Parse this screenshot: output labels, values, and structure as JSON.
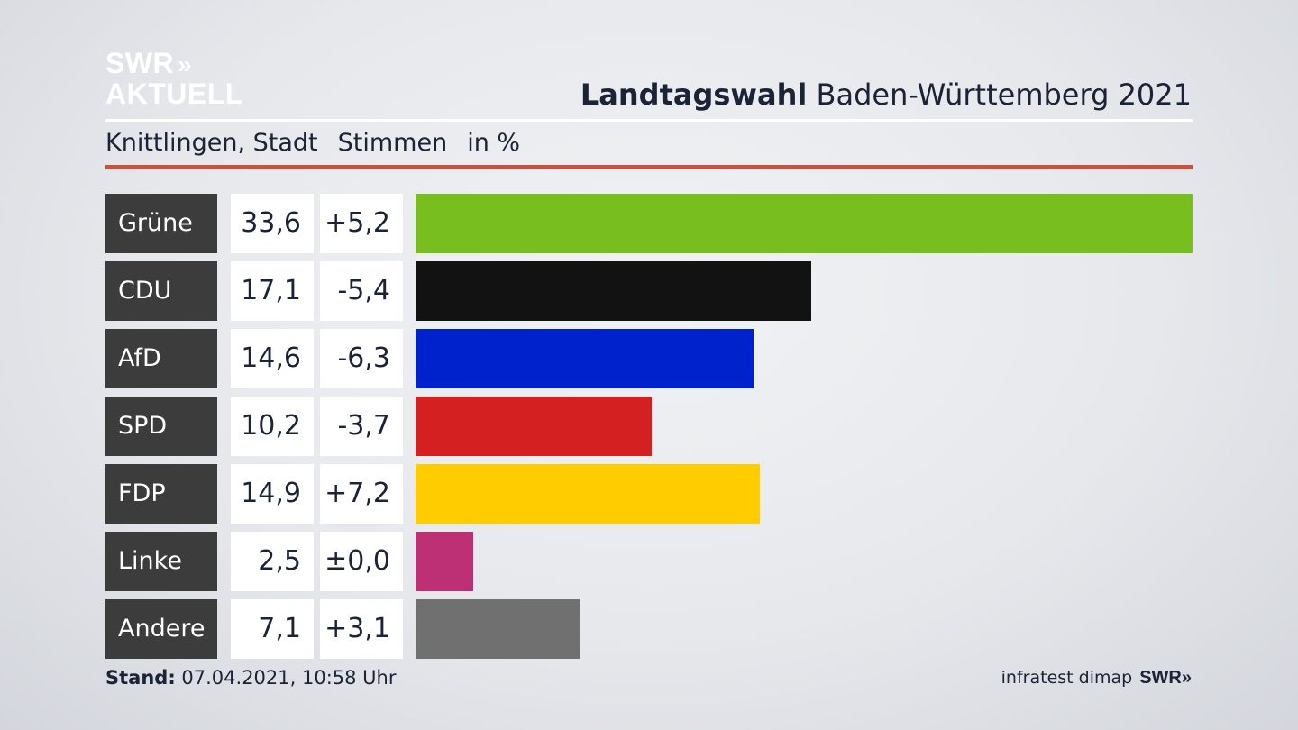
{
  "logo": {
    "line1": "SWR",
    "chevrons": "»",
    "line2": "AKTUELL"
  },
  "header": {
    "title_bold": "Landtagswahl",
    "title_rest": " Baden-Württemberg 2021"
  },
  "subheader": {
    "location": "Knittlingen, Stadt",
    "measure": "Stimmen",
    "unit": "in %"
  },
  "footer": {
    "stand_label": "Stand:",
    "stand_value": " 07.04.2021, 10:58 Uhr",
    "source": "infratest dimap",
    "brand": "SWR»"
  },
  "colors": {
    "accent_rule": "#cf4f3e",
    "label_bg": "#3c3c3c"
  },
  "chart_data": {
    "type": "bar",
    "orientation": "horizontal",
    "unit": "in %",
    "categories": [
      "Grüne",
      "CDU",
      "AfD",
      "SPD",
      "FDP",
      "Linke",
      "Andere"
    ],
    "values": [
      33.6,
      17.1,
      14.6,
      10.2,
      14.9,
      2.5,
      7.1
    ],
    "value_labels": [
      "33,6",
      "17,1",
      "14,6",
      "10,2",
      "14,9",
      "2,5",
      "7,1"
    ],
    "change_labels": [
      "+5,2",
      "-5,4",
      "-6,3",
      "-3,7",
      "+7,2",
      "±0,0",
      "+3,1"
    ],
    "colors": [
      "#78be1e",
      "#121212",
      "#0022cc",
      "#d42020",
      "#ffcc00",
      "#be3075",
      "#707070"
    ],
    "xlim": [
      0,
      33.6
    ]
  }
}
